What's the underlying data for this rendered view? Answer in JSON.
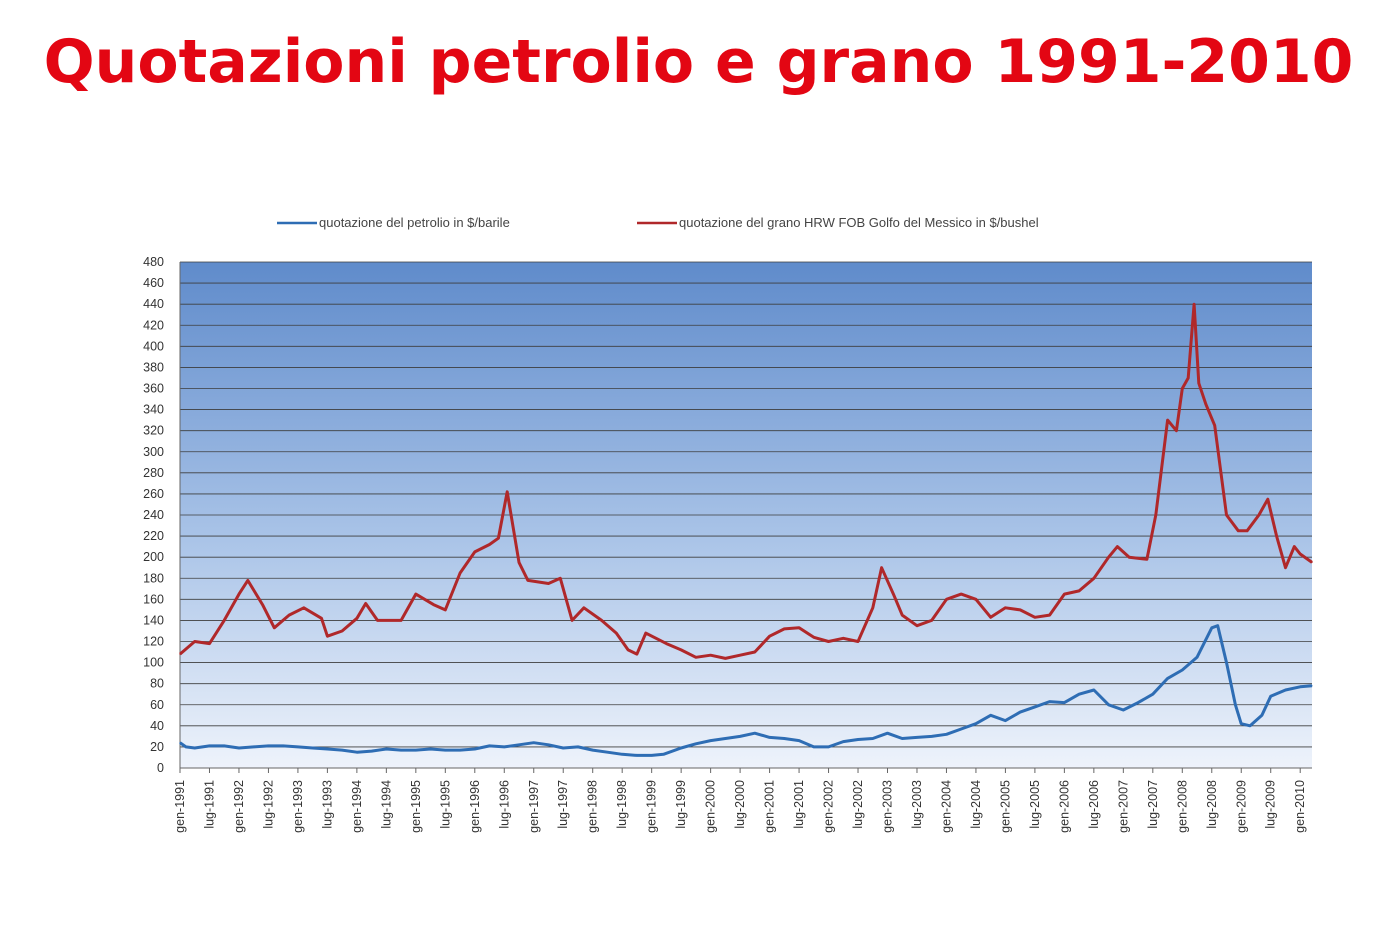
{
  "title": "Quotazioni petrolio e grano 1991-2010",
  "chart_data": {
    "type": "line",
    "title": "",
    "xlabel": "",
    "ylabel": "",
    "ylim": [
      0,
      480
    ],
    "y_ticks": [
      0,
      20,
      40,
      60,
      80,
      100,
      120,
      140,
      160,
      180,
      200,
      220,
      240,
      260,
      280,
      300,
      320,
      340,
      360,
      380,
      400,
      420,
      440,
      460,
      480
    ],
    "grid": true,
    "legend_position": "top",
    "x_tick_labels": [
      "gen-1991",
      "lug-1991",
      "gen-1992",
      "lug-1992",
      "gen-1993",
      "lug-1993",
      "gen-1994",
      "lug-1994",
      "gen-1995",
      "lug-1995",
      "gen-1996",
      "lug-1996",
      "gen-1997",
      "lug-1997",
      "gen-1998",
      "lug-1998",
      "gen-1999",
      "lug-1999",
      "gen-2000",
      "lug-2000",
      "gen-2001",
      "lug-2001",
      "gen-2002",
      "lug-2002",
      "gen-2003",
      "lug-2003",
      "gen-2004",
      "lug-2004",
      "gen-2005",
      "lug-2005",
      "gen-2006",
      "lug-2006",
      "gen-2007",
      "lug-2007",
      "gen-2008",
      "lug-2008",
      "gen-2009",
      "lug-2009",
      "gen-2010"
    ],
    "x_range": [
      1991.0,
      2010.2
    ],
    "series": [
      {
        "name": "quotazione del petrolio in $/barile",
        "color": "#2e6db4",
        "points": [
          [
            1991.0,
            24
          ],
          [
            1991.1,
            20
          ],
          [
            1991.25,
            19
          ],
          [
            1991.5,
            21
          ],
          [
            1991.75,
            21
          ],
          [
            1992.0,
            19
          ],
          [
            1992.25,
            20
          ],
          [
            1992.5,
            21
          ],
          [
            1992.75,
            21
          ],
          [
            1993.0,
            20
          ],
          [
            1993.25,
            19
          ],
          [
            1993.5,
            18
          ],
          [
            1993.75,
            17
          ],
          [
            1994.0,
            15
          ],
          [
            1994.25,
            16
          ],
          [
            1994.5,
            18
          ],
          [
            1994.75,
            17
          ],
          [
            1995.0,
            17
          ],
          [
            1995.25,
            18
          ],
          [
            1995.5,
            17
          ],
          [
            1995.75,
            17
          ],
          [
            1996.0,
            18
          ],
          [
            1996.25,
            21
          ],
          [
            1996.5,
            20
          ],
          [
            1996.75,
            22
          ],
          [
            1997.0,
            24
          ],
          [
            1997.25,
            22
          ],
          [
            1997.5,
            19
          ],
          [
            1997.75,
            20
          ],
          [
            1998.0,
            17
          ],
          [
            1998.25,
            15
          ],
          [
            1998.5,
            13
          ],
          [
            1998.75,
            12
          ],
          [
            1999.0,
            12
          ],
          [
            1999.2,
            13
          ],
          [
            1999.5,
            19
          ],
          [
            1999.75,
            23
          ],
          [
            2000.0,
            26
          ],
          [
            2000.25,
            28
          ],
          [
            2000.5,
            30
          ],
          [
            2000.75,
            33
          ],
          [
            2001.0,
            29
          ],
          [
            2001.25,
            28
          ],
          [
            2001.5,
            26
          ],
          [
            2001.75,
            20
          ],
          [
            2002.0,
            20
          ],
          [
            2002.25,
            25
          ],
          [
            2002.5,
            27
          ],
          [
            2002.75,
            28
          ],
          [
            2003.0,
            33
          ],
          [
            2003.25,
            28
          ],
          [
            2003.5,
            29
          ],
          [
            2003.75,
            30
          ],
          [
            2004.0,
            32
          ],
          [
            2004.25,
            37
          ],
          [
            2004.5,
            42
          ],
          [
            2004.75,
            50
          ],
          [
            2005.0,
            45
          ],
          [
            2005.25,
            53
          ],
          [
            2005.5,
            58
          ],
          [
            2005.75,
            63
          ],
          [
            2006.0,
            62
          ],
          [
            2006.25,
            70
          ],
          [
            2006.5,
            74
          ],
          [
            2006.75,
            60
          ],
          [
            2007.0,
            55
          ],
          [
            2007.25,
            62
          ],
          [
            2007.5,
            70
          ],
          [
            2007.75,
            85
          ],
          [
            2008.0,
            93
          ],
          [
            2008.25,
            105
          ],
          [
            2008.5,
            133
          ],
          [
            2008.6,
            135
          ],
          [
            2008.75,
            100
          ],
          [
            2008.9,
            60
          ],
          [
            2009.0,
            42
          ],
          [
            2009.15,
            40
          ],
          [
            2009.35,
            50
          ],
          [
            2009.5,
            68
          ],
          [
            2009.75,
            74
          ],
          [
            2010.0,
            77
          ],
          [
            2010.2,
            78
          ]
        ]
      },
      {
        "name": "quotazione del grano HRW FOB Golfo del Messico in $/bushel",
        "color": "#b0282a",
        "points": [
          [
            1991.0,
            108
          ],
          [
            1991.25,
            120
          ],
          [
            1991.5,
            118
          ],
          [
            1991.75,
            140
          ],
          [
            1992.0,
            165
          ],
          [
            1992.15,
            178
          ],
          [
            1992.4,
            155
          ],
          [
            1992.6,
            133
          ],
          [
            1992.85,
            145
          ],
          [
            1993.1,
            152
          ],
          [
            1993.4,
            142
          ],
          [
            1993.5,
            125
          ],
          [
            1993.75,
            130
          ],
          [
            1994.0,
            142
          ],
          [
            1994.15,
            156
          ],
          [
            1994.35,
            140
          ],
          [
            1994.75,
            140
          ],
          [
            1995.0,
            165
          ],
          [
            1995.3,
            155
          ],
          [
            1995.5,
            150
          ],
          [
            1995.75,
            185
          ],
          [
            1996.0,
            205
          ],
          [
            1996.25,
            212
          ],
          [
            1996.4,
            218
          ],
          [
            1996.55,
            262
          ],
          [
            1996.75,
            195
          ],
          [
            1996.9,
            178
          ],
          [
            1997.25,
            175
          ],
          [
            1997.45,
            180
          ],
          [
            1997.65,
            140
          ],
          [
            1997.85,
            152
          ],
          [
            1998.15,
            140
          ],
          [
            1998.4,
            128
          ],
          [
            1998.6,
            112
          ],
          [
            1998.75,
            108
          ],
          [
            1998.9,
            128
          ],
          [
            1999.25,
            118
          ],
          [
            1999.5,
            112
          ],
          [
            1999.75,
            105
          ],
          [
            2000.0,
            107
          ],
          [
            2000.25,
            104
          ],
          [
            2000.5,
            107
          ],
          [
            2000.75,
            110
          ],
          [
            2001.0,
            125
          ],
          [
            2001.25,
            132
          ],
          [
            2001.5,
            133
          ],
          [
            2001.75,
            124
          ],
          [
            2002.0,
            120
          ],
          [
            2002.25,
            123
          ],
          [
            2002.5,
            120
          ],
          [
            2002.75,
            152
          ],
          [
            2002.9,
            190
          ],
          [
            2003.1,
            165
          ],
          [
            2003.25,
            145
          ],
          [
            2003.5,
            135
          ],
          [
            2003.75,
            140
          ],
          [
            2004.0,
            160
          ],
          [
            2004.25,
            165
          ],
          [
            2004.5,
            160
          ],
          [
            2004.75,
            143
          ],
          [
            2005.0,
            152
          ],
          [
            2005.25,
            150
          ],
          [
            2005.5,
            143
          ],
          [
            2005.75,
            145
          ],
          [
            2006.0,
            165
          ],
          [
            2006.25,
            168
          ],
          [
            2006.5,
            180
          ],
          [
            2006.75,
            200
          ],
          [
            2006.9,
            210
          ],
          [
            2007.1,
            200
          ],
          [
            2007.4,
            198
          ],
          [
            2007.55,
            240
          ],
          [
            2007.75,
            330
          ],
          [
            2007.9,
            320
          ],
          [
            2008.0,
            360
          ],
          [
            2008.1,
            370
          ],
          [
            2008.2,
            440
          ],
          [
            2008.28,
            365
          ],
          [
            2008.4,
            345
          ],
          [
            2008.55,
            325
          ],
          [
            2008.75,
            240
          ],
          [
            2008.95,
            225
          ],
          [
            2009.1,
            225
          ],
          [
            2009.3,
            240
          ],
          [
            2009.45,
            255
          ],
          [
            2009.6,
            220
          ],
          [
            2009.75,
            190
          ],
          [
            2009.9,
            210
          ],
          [
            2010.0,
            203
          ],
          [
            2010.2,
            195
          ]
        ]
      }
    ]
  }
}
